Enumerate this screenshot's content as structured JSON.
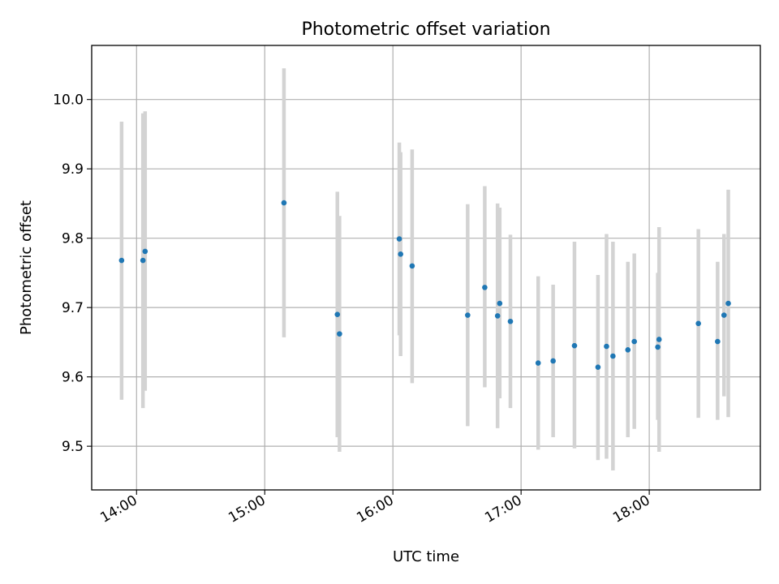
{
  "colors": {
    "point": "#1f77b4",
    "errorbar": "#d3d3d3",
    "grid": "#b0b0b0"
  },
  "chart_data": {
    "type": "scatter",
    "title": "Photometric offset variation",
    "xlabel": "UTC time",
    "ylabel": "Photometric offset",
    "grid": true,
    "xlim": [
      "13:39",
      "18:52"
    ],
    "ylim": [
      9.437,
      10.078
    ],
    "x_ticks": [
      "14:00",
      "15:00",
      "16:00",
      "17:00",
      "18:00"
    ],
    "y_ticks": [
      9.5,
      9.6,
      9.7,
      9.8,
      9.9,
      10.0
    ],
    "y_tick_labels": [
      "9.5",
      "9.6",
      "9.7",
      "9.8",
      "9.9",
      "10.0"
    ],
    "series": [
      {
        "points": [
          {
            "t": "13:53",
            "y": 9.768,
            "low": 9.567,
            "high": 9.968
          },
          {
            "t": "14:03",
            "y": 9.768,
            "low": 9.555,
            "high": 9.98
          },
          {
            "t": "14:04",
            "y": 9.781,
            "low": 9.58,
            "high": 9.983
          },
          {
            "t": "15:09",
            "y": 9.851,
            "low": 9.657,
            "high": 10.045
          },
          {
            "t": "15:34",
            "y": 9.69,
            "low": 9.513,
            "high": 9.867
          },
          {
            "t": "15:35",
            "y": 9.662,
            "low": 9.492,
            "high": 9.832
          },
          {
            "t": "16:03",
            "y": 9.799,
            "low": 9.66,
            "high": 9.938
          },
          {
            "t": "16:03",
            "y": 9.777,
            "low": 9.63,
            "high": 9.924
          },
          {
            "t": "16:09",
            "y": 9.76,
            "low": 9.591,
            "high": 9.928
          },
          {
            "t": "16:35",
            "y": 9.689,
            "low": 9.529,
            "high": 9.849
          },
          {
            "t": "16:43",
            "y": 9.729,
            "low": 9.585,
            "high": 9.875
          },
          {
            "t": "16:49",
            "y": 9.688,
            "low": 9.526,
            "high": 9.85
          },
          {
            "t": "16:50",
            "y": 9.706,
            "low": 9.569,
            "high": 9.844
          },
          {
            "t": "16:55",
            "y": 9.68,
            "low": 9.555,
            "high": 9.805
          },
          {
            "t": "17:08",
            "y": 9.62,
            "low": 9.495,
            "high": 9.745
          },
          {
            "t": "17:15",
            "y": 9.623,
            "low": 9.513,
            "high": 9.733
          },
          {
            "t": "17:25",
            "y": 9.645,
            "low": 9.497,
            "high": 9.795
          },
          {
            "t": "17:36",
            "y": 9.614,
            "low": 9.48,
            "high": 9.747
          },
          {
            "t": "17:40",
            "y": 9.644,
            "low": 9.482,
            "high": 9.806
          },
          {
            "t": "17:43",
            "y": 9.63,
            "low": 9.465,
            "high": 9.795
          },
          {
            "t": "17:50",
            "y": 9.639,
            "low": 9.513,
            "high": 9.766
          },
          {
            "t": "17:53",
            "y": 9.651,
            "low": 9.525,
            "high": 9.778
          },
          {
            "t": "18:04",
            "y": 9.643,
            "low": 9.538,
            "high": 9.75
          },
          {
            "t": "18:04",
            "y": 9.654,
            "low": 9.492,
            "high": 9.816
          },
          {
            "t": "18:23",
            "y": 9.677,
            "low": 9.541,
            "high": 9.813
          },
          {
            "t": "18:32",
            "y": 9.651,
            "low": 9.538,
            "high": 9.766
          },
          {
            "t": "18:35",
            "y": 9.689,
            "low": 9.572,
            "high": 9.806
          },
          {
            "t": "18:37",
            "y": 9.706,
            "low": 9.542,
            "high": 9.87
          }
        ]
      }
    ]
  }
}
